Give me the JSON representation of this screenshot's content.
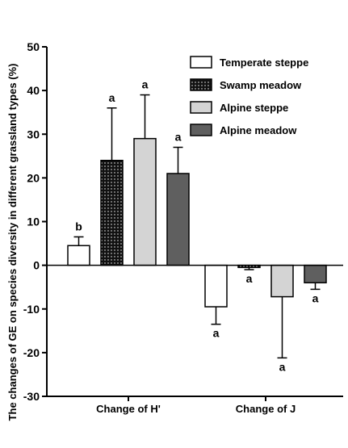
{
  "chart_data": {
    "type": "bar",
    "title": "",
    "ylabel": "The changes of GE on species diversity in different grassland types (%)",
    "xlabel": "",
    "ylim": [
      -30,
      50
    ],
    "yticks": [
      -30,
      -20,
      -10,
      0,
      10,
      20,
      30,
      40,
      50
    ],
    "categories": [
      "Change of H'",
      "Change of J"
    ],
    "legend_position": "top-right",
    "series": [
      {
        "name": "Temperate steppe",
        "fill": "#ffffff",
        "pattern": "none",
        "values": [
          4.5,
          -9.5
        ],
        "errors": [
          2,
          4
        ],
        "letters": [
          "b",
          "a"
        ]
      },
      {
        "name": "Swamp meadow",
        "fill": "#111111",
        "pattern": "dots",
        "values": [
          24,
          -0.5
        ],
        "errors": [
          12,
          0.5
        ],
        "letters": [
          "a",
          "a"
        ]
      },
      {
        "name": "Alpine steppe",
        "fill": "#d4d4d4",
        "pattern": "none",
        "values": [
          29,
          -7.2
        ],
        "errors": [
          10,
          14
        ],
        "letters": [
          "a",
          "a"
        ]
      },
      {
        "name": "Alpine meadow",
        "fill": "#5f5f5f",
        "pattern": "none",
        "values": [
          21,
          -4
        ],
        "errors": [
          6,
          1.5
        ],
        "letters": [
          "a",
          "a"
        ]
      }
    ]
  }
}
